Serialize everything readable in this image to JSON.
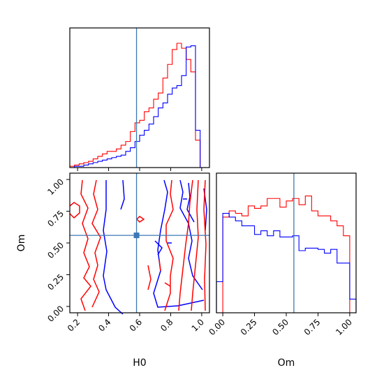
{
  "chart_data": [
    {
      "type": "histogram",
      "panel": "H0 marginal",
      "xlim": [
        0.15,
        1.05
      ],
      "bin_edges": [
        0.15,
        0.18,
        0.21,
        0.24,
        0.27,
        0.3,
        0.33,
        0.36,
        0.39,
        0.42,
        0.45,
        0.48,
        0.51,
        0.54,
        0.57,
        0.6,
        0.63,
        0.66,
        0.69,
        0.72,
        0.75,
        0.78,
        0.81,
        0.84,
        0.87,
        0.9,
        0.93,
        0.96,
        0.99,
        1.02
      ],
      "series": [
        {
          "color": "#ff0000",
          "values": [
            0.01,
            0.02,
            0.03,
            0.04,
            0.05,
            0.07,
            0.09,
            0.11,
            0.13,
            0.13,
            0.15,
            0.18,
            0.21,
            0.29,
            0.36,
            0.38,
            0.45,
            0.48,
            0.55,
            0.6,
            0.72,
            0.83,
            0.95,
            1.0,
            0.96,
            0.87,
            0.77,
            0.22,
            0.0
          ]
        },
        {
          "color": "#0000ff",
          "values": [
            0.0,
            0.01,
            0.01,
            0.02,
            0.03,
            0.04,
            0.05,
            0.06,
            0.07,
            0.08,
            0.09,
            0.1,
            0.13,
            0.16,
            0.21,
            0.26,
            0.3,
            0.35,
            0.41,
            0.48,
            0.52,
            0.59,
            0.64,
            0.66,
            0.74,
            0.97,
            0.98,
            0.3,
            0.0
          ]
        }
      ],
      "truth_line_x": 0.58
    },
    {
      "type": "contour",
      "panel": "H0 vs Om joint",
      "xlabel": "H0",
      "ylabel": "Om",
      "xlim": [
        0.15,
        1.05
      ],
      "ylim": [
        -0.05,
        1.05
      ],
      "x_ticks": [
        "0.2",
        "0.4",
        "0.6",
        "0.8",
        "1.0"
      ],
      "y_ticks": [
        "0.00",
        "0.25",
        "0.50",
        "0.75",
        "1.00"
      ],
      "truth_point": {
        "x": 0.58,
        "y": 0.56
      }
    },
    {
      "type": "histogram",
      "panel": "Om marginal",
      "xlabel": "Om",
      "xlim": [
        -0.05,
        1.05
      ],
      "x_ticks": [
        "0.00",
        "0.25",
        "0.50",
        "0.75",
        "1.00"
      ],
      "bin_edges": [
        -0.05,
        0.0,
        0.05,
        0.1,
        0.15,
        0.2,
        0.25,
        0.3,
        0.35,
        0.4,
        0.45,
        0.5,
        0.55,
        0.6,
        0.65,
        0.7,
        0.75,
        0.8,
        0.85,
        0.9,
        0.95,
        1.0,
        1.05
      ],
      "series": [
        {
          "color": "#ff0000",
          "values": [
            0.0,
            0.77,
            0.82,
            0.8,
            0.78,
            0.86,
            0.84,
            0.86,
            0.92,
            0.92,
            0.85,
            0.9,
            0.92,
            0.87,
            0.94,
            0.82,
            0.78,
            0.78,
            0.74,
            0.7,
            0.62,
            0.0
          ]
        },
        {
          "color": "#0000ff",
          "values": [
            0.25,
            0.8,
            0.77,
            0.74,
            0.7,
            0.7,
            0.63,
            0.66,
            0.62,
            0.66,
            0.61,
            0.61,
            0.62,
            0.5,
            0.52,
            0.52,
            0.51,
            0.48,
            0.51,
            0.4,
            0.4,
            0.11
          ]
        }
      ],
      "truth_line_x": 0.56
    }
  ]
}
